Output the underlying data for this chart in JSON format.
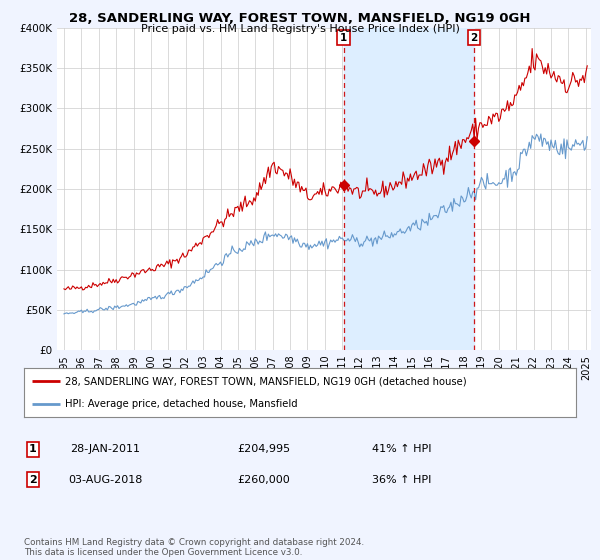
{
  "title1": "28, SANDERLING WAY, FOREST TOWN, MANSFIELD, NG19 0GH",
  "title2": "Price paid vs. HM Land Registry's House Price Index (HPI)",
  "legend_line1": "28, SANDERLING WAY, FOREST TOWN, MANSFIELD, NG19 0GH (detached house)",
  "legend_line2": "HPI: Average price, detached house, Mansfield",
  "annotation1_label": "1",
  "annotation1_date": "28-JAN-2011",
  "annotation1_price": "£204,995",
  "annotation1_hpi": "41% ↑ HPI",
  "annotation2_label": "2",
  "annotation2_date": "03-AUG-2018",
  "annotation2_price": "£260,000",
  "annotation2_hpi": "36% ↑ HPI",
  "footer": "Contains HM Land Registry data © Crown copyright and database right 2024.\nThis data is licensed under the Open Government Licence v3.0.",
  "red_color": "#cc0000",
  "blue_color": "#6699cc",
  "shade_color": "#ddeeff",
  "background_color": "#f0f4ff",
  "plot_bg_color": "#ffffff",
  "ylim": [
    0,
    400000
  ],
  "yticks": [
    0,
    50000,
    100000,
    150000,
    200000,
    250000,
    300000,
    350000,
    400000
  ],
  "ytick_labels": [
    "£0",
    "£50K",
    "£100K",
    "£150K",
    "£200K",
    "£250K",
    "£300K",
    "£350K",
    "£400K"
  ],
  "sale1_year": 2011.08,
  "sale1_price": 204995,
  "sale2_year": 2018.58,
  "sale2_price": 260000,
  "xlim_left": 1995.0,
  "xlim_right": 2025.3
}
